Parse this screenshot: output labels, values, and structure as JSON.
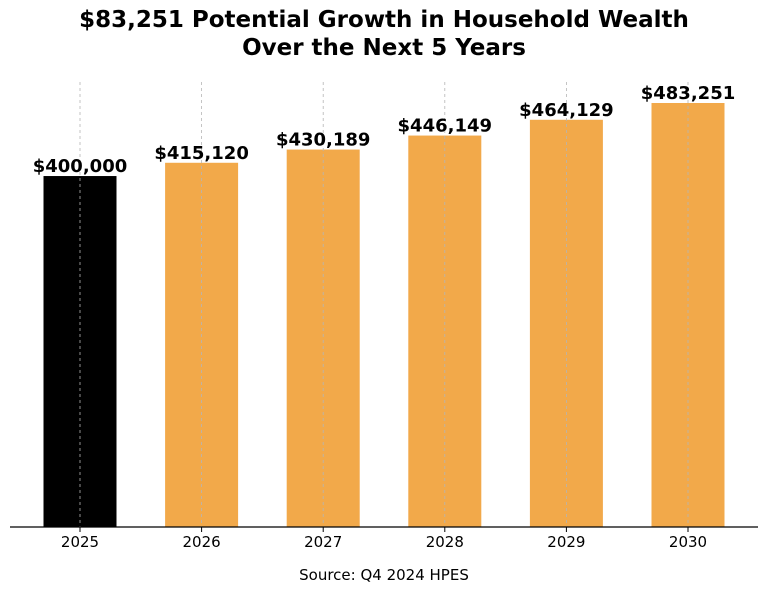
{
  "chart_data": {
    "type": "bar",
    "title_lines": [
      "$83,251 Potential Growth in Household Wealth",
      "Over the Next 5 Years"
    ],
    "categories": [
      "2025",
      "2026",
      "2027",
      "2028",
      "2029",
      "2030"
    ],
    "values": [
      400000,
      415120,
      430189,
      446149,
      464129,
      483251
    ],
    "data_labels": [
      "$400,000",
      "$415,120",
      "$430,189",
      "$446,149",
      "$464,129",
      "$483,251"
    ],
    "colors": [
      "#000000",
      "#F2A94A",
      "#F2A94A",
      "#F2A94A",
      "#F2A94A",
      "#F2A94A"
    ],
    "ylim": [
      0,
      483251
    ],
    "grid": "vertical dashed",
    "xlabel": "",
    "ylabel": ""
  },
  "source_text": "Source: Q4 2024 HPES"
}
